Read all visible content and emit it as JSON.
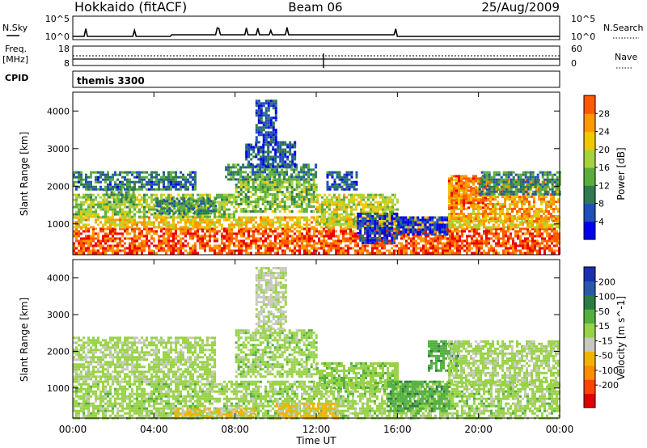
{
  "header": {
    "station": "Hokkaido (fitACF)",
    "beam": "Beam 06",
    "date": "25/Aug/2009"
  },
  "top_panels": {
    "nsky_label": "N.Sky",
    "nsky_ticks": [
      "10^5",
      "10^0"
    ],
    "nsearch_label": "N.Search",
    "nsearch_ticks": [
      "10^5",
      "10^0"
    ],
    "freq_label_1": "Freq.",
    "freq_label_2": "[MHz]",
    "freq_ticks": [
      "18",
      "8"
    ],
    "nave_label": "Nave",
    "nave_ticks": [
      "60",
      "0"
    ],
    "cpid_label": "CPID",
    "cpid_value": "themis 3300"
  },
  "colors": {
    "power_scale": [
      "#0000ee",
      "#1f4fb8",
      "#2f7a50",
      "#5aad3c",
      "#a8d23c",
      "#f0c800",
      "#ff9900",
      "#ff5a00",
      "#ee0000"
    ],
    "velocity_scale": [
      "#1a2fb0",
      "#2a58a8",
      "#2d7a45",
      "#52b040",
      "#98d248",
      "#c8c8c0",
      "#f0b400",
      "#ff8c00",
      "#ff4400",
      "#e00000"
    ]
  },
  "chart_data": [
    {
      "type": "heatmap",
      "name": "power",
      "ylabel": "Slant Range [km]",
      "yticks": [
        "1000",
        "2000",
        "3000",
        "4000"
      ],
      "ylim": [
        180,
        4500
      ],
      "xlim_hours": [
        0,
        24
      ],
      "colorbar_label": "Power [dB]",
      "colorbar_ticks": [
        "4",
        "8",
        "12",
        "16",
        "20",
        "24",
        "28"
      ],
      "colorbar_range": [
        0,
        32
      ],
      "bands": [
        {
          "start": 0,
          "end": 24,
          "rmin": 200,
          "rmax": 900,
          "value": 27
        },
        {
          "start": 0,
          "end": 24,
          "rmin": 900,
          "rmax": 1200,
          "value": 20
        },
        {
          "start": 0,
          "end": 8,
          "rmin": 1200,
          "rmax": 1800,
          "value": 15
        },
        {
          "start": 1.5,
          "end": 3,
          "rmin": 1500,
          "rmax": 2000,
          "value": 12
        },
        {
          "start": 0,
          "end": 6,
          "rmin": 1900,
          "rmax": 2400,
          "value": 8
        },
        {
          "start": 4,
          "end": 7,
          "rmin": 1300,
          "rmax": 1700,
          "value": 9
        },
        {
          "start": 8,
          "end": 12,
          "rmin": 1300,
          "rmax": 2200,
          "value": 14
        },
        {
          "start": 7.5,
          "end": 12,
          "rmin": 2200,
          "rmax": 2600,
          "value": 10
        },
        {
          "start": 8.5,
          "end": 11,
          "rmin": 2500,
          "rmax": 3200,
          "value": 6
        },
        {
          "start": 9,
          "end": 10,
          "rmin": 3200,
          "rmax": 4300,
          "value": 5
        },
        {
          "start": 12,
          "end": 16,
          "rmin": 1000,
          "rmax": 1800,
          "value": 17
        },
        {
          "start": 12.5,
          "end": 14,
          "rmin": 1900,
          "rmax": 2400,
          "value": 6
        },
        {
          "start": 14,
          "end": 16,
          "rmin": 500,
          "rmax": 1300,
          "value": 4
        },
        {
          "start": 16,
          "end": 18.5,
          "rmin": 700,
          "rmax": 1200,
          "value": 3
        },
        {
          "start": 18.5,
          "end": 24,
          "rmin": 1100,
          "rmax": 2200,
          "value": 22
        },
        {
          "start": 18.5,
          "end": 20.5,
          "rmin": 1400,
          "rmax": 2300,
          "value": 25
        },
        {
          "start": 20,
          "end": 24,
          "rmin": 1800,
          "rmax": 2400,
          "value": 9
        }
      ]
    },
    {
      "type": "heatmap",
      "name": "velocity",
      "ylabel": "Slant Range [km]",
      "yticks": [
        "1000",
        "2000",
        "3000",
        "4000"
      ],
      "ylim": [
        180,
        4500
      ],
      "xlim_hours": [
        0,
        24
      ],
      "xticks": [
        "00:00",
        "04:00",
        "08:00",
        "12:00",
        "16:00",
        "20:00",
        "00:00"
      ],
      "xlabel": "Time UT",
      "colorbar_label": "Velocity [m s^-1]",
      "colorbar_ticks": [
        "200",
        "100",
        "50",
        "15",
        "-15",
        "-50",
        "-100",
        "-200"
      ],
      "colorbar_range": [
        -250,
        250
      ],
      "bands": [
        {
          "start": 0,
          "end": 24,
          "rmin": 200,
          "rmax": 1200,
          "value": 0
        },
        {
          "start": 0,
          "end": 7,
          "rmin": 1200,
          "rmax": 2400,
          "value": -5
        },
        {
          "start": 8,
          "end": 12,
          "rmin": 1300,
          "rmax": 2600,
          "value": 0
        },
        {
          "start": 12,
          "end": 16,
          "rmin": 1000,
          "rmax": 1700,
          "value": 5
        },
        {
          "start": 15.5,
          "end": 18.5,
          "rmin": 400,
          "rmax": 1200,
          "value": 40
        },
        {
          "start": 17.5,
          "end": 19,
          "rmin": 1500,
          "rmax": 2300,
          "value": 35
        },
        {
          "start": 10,
          "end": 13,
          "rmin": 200,
          "rmax": 600,
          "value": -60
        },
        {
          "start": 5,
          "end": 9,
          "rmin": 200,
          "rmax": 450,
          "value": -55
        },
        {
          "start": 18.5,
          "end": 24,
          "rmin": 1100,
          "rmax": 2300,
          "value": -5
        },
        {
          "start": 9,
          "end": 10.5,
          "rmin": 2600,
          "rmax": 4300,
          "value": -20
        }
      ]
    }
  ]
}
